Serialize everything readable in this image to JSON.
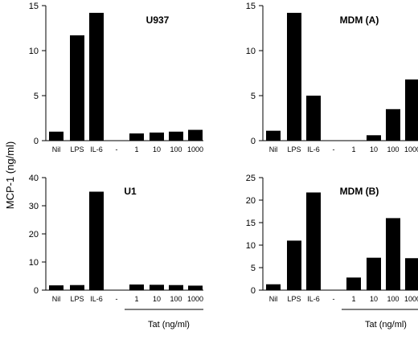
{
  "chart_data": {
    "shared_ylabel": "MCP-1 (ng/ml)",
    "charts": [
      {
        "type": "bar",
        "title": "U937",
        "categories": [
          "Nil",
          "LPS",
          "IL-6",
          "-",
          "1",
          "10",
          "100",
          "1000"
        ],
        "values": [
          1.0,
          11.7,
          14.2,
          0,
          0.8,
          0.9,
          1.0,
          1.2
        ],
        "ylim": [
          0,
          15
        ],
        "yticks": [
          0,
          5,
          10,
          15
        ],
        "xlabel": ""
      },
      {
        "type": "bar",
        "title": "MDM  (A)",
        "categories": [
          "Nil",
          "LPS",
          "IL-6",
          "-",
          "1",
          "10",
          "100",
          "1000"
        ],
        "values": [
          1.1,
          14.2,
          5.0,
          0,
          0,
          0.6,
          3.5,
          6.8
        ],
        "ylim": [
          0,
          15
        ],
        "yticks": [
          0,
          5,
          10,
          15
        ],
        "xlabel": ""
      },
      {
        "type": "bar",
        "title": "U1",
        "categories": [
          "Nil",
          "LPS",
          "IL-6",
          "-",
          "1",
          "10",
          "100",
          "1000"
        ],
        "values": [
          1.7,
          1.8,
          35.0,
          0,
          2.0,
          1.9,
          1.8,
          1.6
        ],
        "ylim": [
          0,
          40
        ],
        "yticks": [
          0,
          10,
          20,
          30,
          40
        ],
        "xlabel": "Tat (ng/ml)"
      },
      {
        "type": "bar",
        "title": "MDM  (B)",
        "categories": [
          "Nil",
          "LPS",
          "IL-6",
          "-",
          "1",
          "10",
          "100",
          "1000"
        ],
        "values": [
          1.3,
          11.0,
          21.7,
          0,
          2.8,
          7.2,
          16.0,
          7.1
        ],
        "ylim": [
          0,
          25
        ],
        "yticks": [
          0,
          5,
          10,
          15,
          20,
          25
        ],
        "xlabel": "Tat (ng/ml)"
      }
    ]
  }
}
